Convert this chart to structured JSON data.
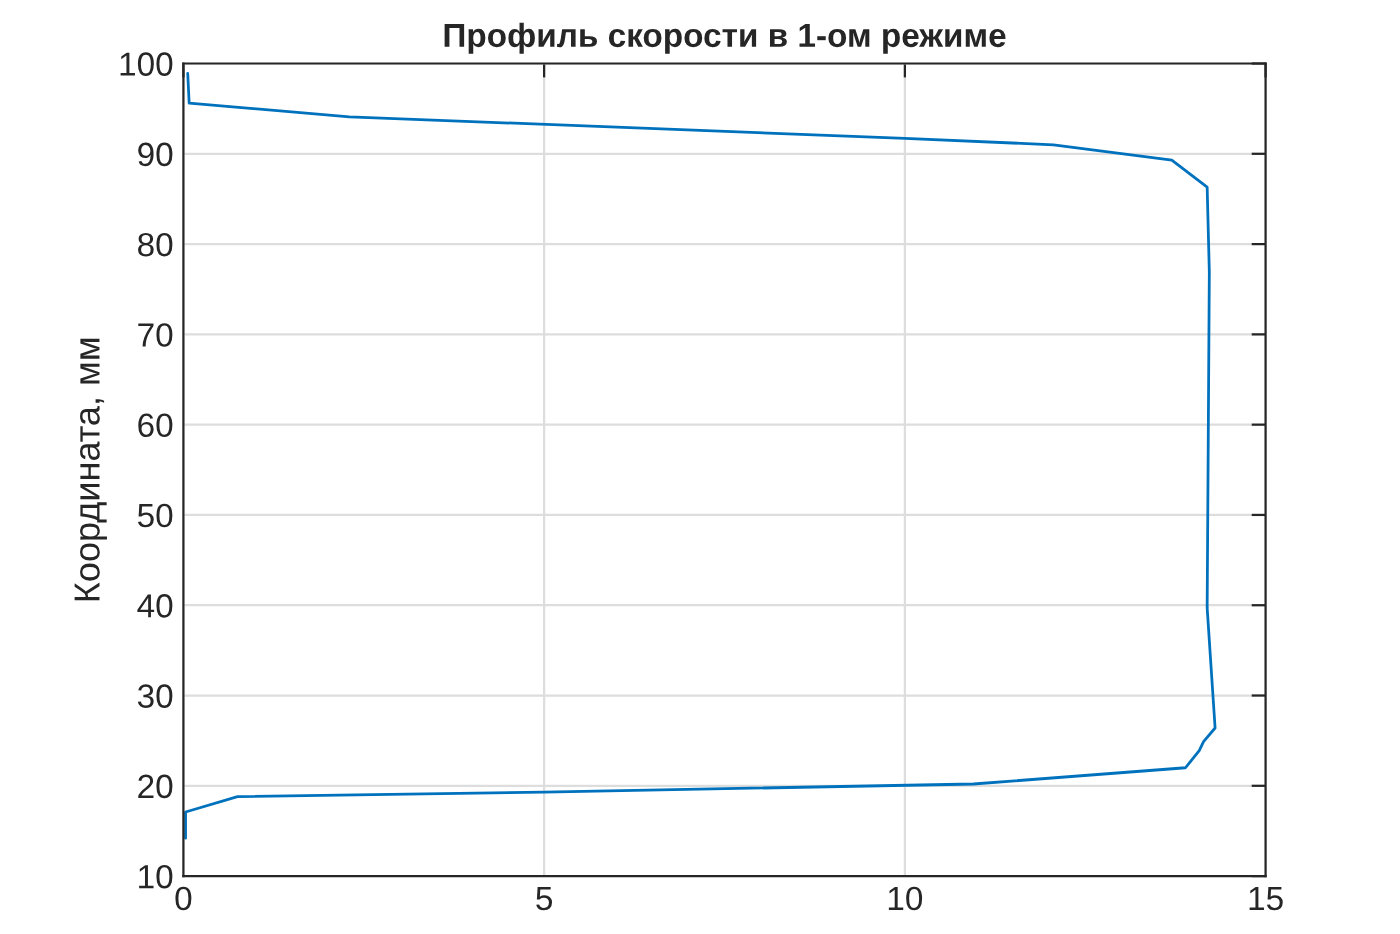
{
  "chart_data": {
    "type": "line",
    "title": "Профиль скорости в 1-ом режиме",
    "ylabel": "Координата, мм",
    "series": [
      {
        "color": "#0072bd",
        "x": [
          0.03,
          0.03,
          0.75,
          5.0,
          10.95,
          13.89,
          14.08,
          14.14,
          14.3,
          14.19,
          14.22,
          14.19,
          13.7,
          12.06,
          10.0,
          2.3,
          0.08,
          0.06
        ],
        "values": [
          14.2,
          17.1,
          18.8,
          19.3,
          20.2,
          22.0,
          23.9,
          24.9,
          26.4,
          39.7,
          76.9,
          86.3,
          89.3,
          91.0,
          91.7,
          94.1,
          95.6,
          98.9
        ]
      }
    ],
    "xlim": [
      0,
      15
    ],
    "xticks": [
      0,
      5,
      10,
      15
    ],
    "ylim": [
      10,
      100
    ],
    "yticks": [
      10,
      20,
      30,
      40,
      50,
      60,
      70,
      80,
      90,
      100
    ],
    "grid": true,
    "marker": "none",
    "line_style": "solid",
    "legend": false
  }
}
